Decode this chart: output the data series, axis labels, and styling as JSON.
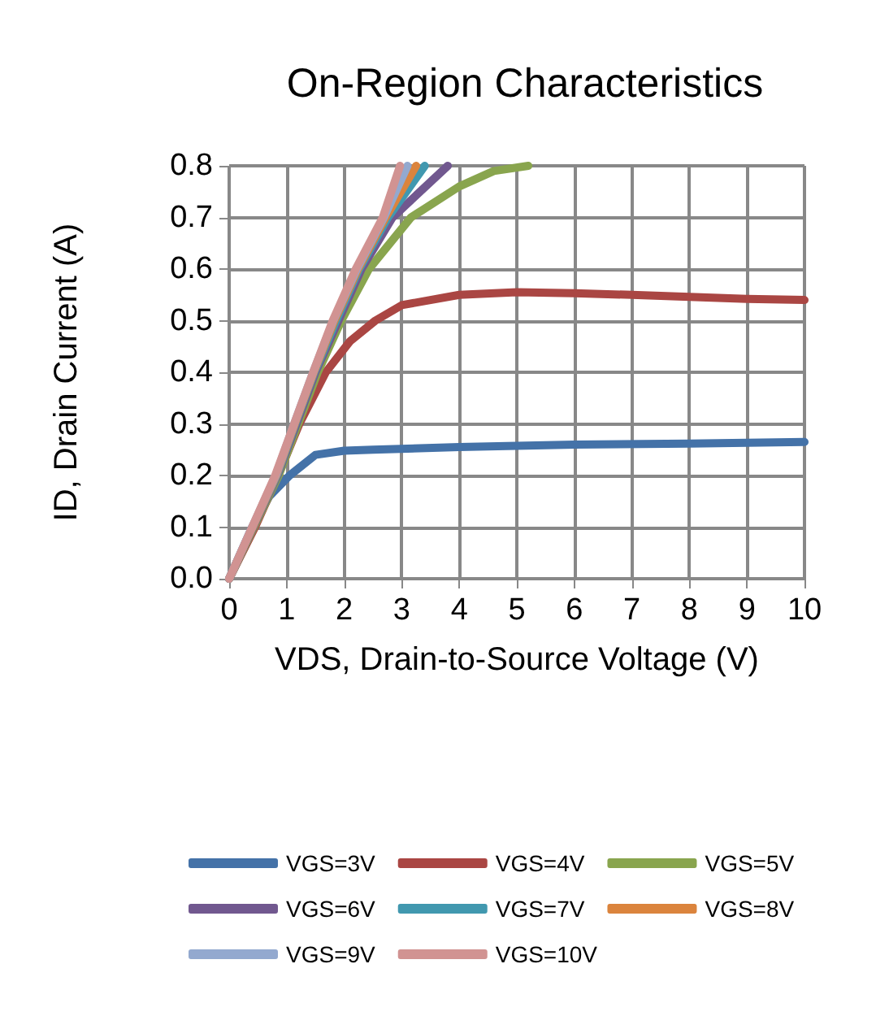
{
  "chart_data": {
    "type": "line",
    "title": "On-Region Characteristics",
    "xlabel": "VDS, Drain-to-Source Voltage (V)",
    "ylabel": "ID, Drain Current (A)",
    "xlim": [
      0,
      10
    ],
    "ylim": [
      0,
      0.8
    ],
    "xticks": [
      0,
      1,
      2,
      3,
      4,
      5,
      6,
      7,
      8,
      9,
      10
    ],
    "yticks": [
      {
        "value": 0,
        "label": "0.0"
      },
      0.1,
      0.2,
      0.3,
      0.4,
      0.5,
      0.6,
      0.7,
      0.8
    ],
    "grid": true,
    "legend": "bottom",
    "marker": "none",
    "line_style": "solid",
    "series": [
      {
        "name": "VGS=3V",
        "color": "#4472a8",
        "x": [
          0,
          0.4,
          0.7,
          1.05,
          1.5,
          2,
          2.5,
          4,
          6,
          8,
          10
        ],
        "values": [
          0,
          0.1,
          0.16,
          0.2,
          0.24,
          0.248,
          0.25,
          0.255,
          0.26,
          0.262,
          0.265
        ]
      },
      {
        "name": "VGS=4V",
        "color": "#aa4643",
        "x": [
          0,
          0.45,
          0.85,
          1.22,
          1.68,
          2.1,
          2.54,
          3,
          4,
          5,
          6,
          7,
          8,
          9,
          10
        ],
        "values": [
          0,
          0.1,
          0.2,
          0.3,
          0.4,
          0.46,
          0.5,
          0.53,
          0.55,
          0.555,
          0.553,
          0.55,
          0.546,
          0.542,
          0.54
        ]
      },
      {
        "name": "VGS=5V",
        "color": "#89a54e",
        "x": [
          0,
          0.43,
          0.86,
          1.2,
          1.54,
          1.95,
          2.43,
          3.16,
          4,
          4.6,
          5.2
        ],
        "values": [
          0,
          0.1,
          0.2,
          0.3,
          0.4,
          0.5,
          0.6,
          0.7,
          0.76,
          0.79,
          0.8
        ]
      },
      {
        "name": "VGS=6V",
        "color": "#71588f",
        "x": [
          0,
          0.42,
          0.84,
          1.17,
          1.5,
          1.9,
          2.3,
          2.84,
          3.8
        ],
        "values": [
          0,
          0.1,
          0.2,
          0.3,
          0.4,
          0.5,
          0.6,
          0.7,
          0.8
        ]
      },
      {
        "name": "VGS=7V",
        "color": "#4198af",
        "x": [
          0,
          0.41,
          0.83,
          1.15,
          1.48,
          1.86,
          2.26,
          2.76,
          3.4
        ],
        "values": [
          0,
          0.1,
          0.2,
          0.3,
          0.4,
          0.5,
          0.6,
          0.7,
          0.8
        ]
      },
      {
        "name": "VGS=8V",
        "color": "#db843d",
        "x": [
          0,
          0.41,
          0.82,
          1.14,
          1.47,
          1.83,
          2.24,
          2.72,
          3.25
        ],
        "values": [
          0,
          0.1,
          0.2,
          0.3,
          0.4,
          0.5,
          0.6,
          0.7,
          0.8
        ]
      },
      {
        "name": "VGS=9V",
        "color": "#93a9cf",
        "x": [
          0,
          0.4,
          0.81,
          1.13,
          1.46,
          1.81,
          2.22,
          2.69,
          3.1
        ],
        "values": [
          0,
          0.1,
          0.2,
          0.3,
          0.4,
          0.5,
          0.6,
          0.7,
          0.8
        ]
      },
      {
        "name": "VGS=10V",
        "color": "#d19392",
        "x": [
          0,
          0.4,
          0.8,
          1.13,
          1.46,
          1.8,
          2.2,
          2.67,
          2.97
        ],
        "values": [
          0,
          0.1,
          0.2,
          0.3,
          0.4,
          0.5,
          0.6,
          0.7,
          0.8
        ]
      }
    ]
  }
}
